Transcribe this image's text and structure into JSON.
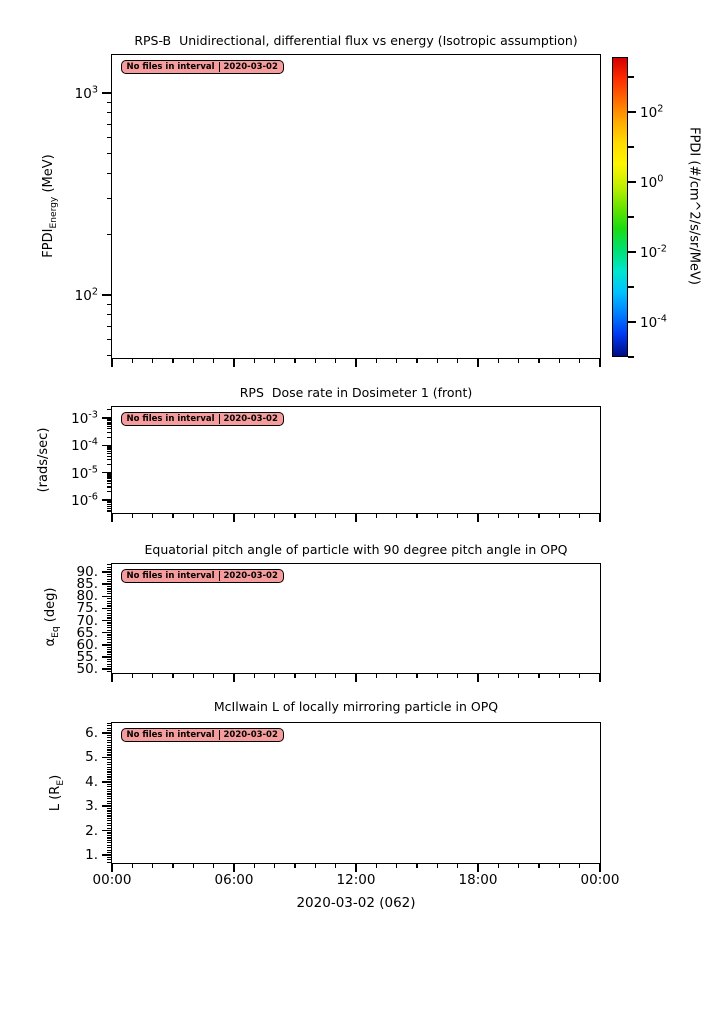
{
  "ui": {
    "badge": {
      "message": "No files in interval",
      "date": "2020-03-02",
      "bg_color": "#f79c9c",
      "border_color": "#000000",
      "text_color": "#000000"
    },
    "xaxis": {
      "tick_labels": [
        "00:00",
        "06:00",
        "12:00",
        "18:00",
        "00:00"
      ],
      "date_label": "2020-03-02 (062)"
    },
    "panels": [
      {
        "ylabel_pre": "FPDI",
        "ylabel_sub": "Energy",
        "ylabel_post": " (MeV)",
        "ytick_labels": [
          {
            "base": "10",
            "exp": "3"
          },
          {
            "base": "10",
            "exp": "2"
          }
        ]
      },
      {
        "ylabel_pre": "(rads/sec)",
        "ylabel_sub": "",
        "ylabel_post": "",
        "ytick_labels": [
          {
            "base": "10",
            "exp": "-3"
          },
          {
            "base": "10",
            "exp": "-4"
          },
          {
            "base": "10",
            "exp": "-5"
          },
          {
            "base": "10",
            "exp": "-6"
          }
        ]
      },
      {
        "ylabel_pre": "α",
        "ylabel_sub": "Eq",
        "ylabel_post": " (deg)",
        "ytick_labels": [
          {
            "text": "90."
          },
          {
            "text": "85."
          },
          {
            "text": "80."
          },
          {
            "text": "75."
          },
          {
            "text": "70."
          },
          {
            "text": "65."
          },
          {
            "text": "60."
          },
          {
            "text": "55."
          },
          {
            "text": "50."
          }
        ]
      },
      {
        "ylabel_pre": "L (R",
        "ylabel_sub": "E",
        "ylabel_post": ")",
        "ytick_labels": [
          {
            "text": "6."
          },
          {
            "text": "5."
          },
          {
            "text": "4."
          },
          {
            "text": "3."
          },
          {
            "text": "2."
          },
          {
            "text": "1."
          }
        ]
      }
    ],
    "colorbar": {
      "label": "FPDI (#/cm^2/s/sr/MeV)",
      "tick_labels": [
        {
          "base": "10",
          "exp": "2"
        },
        {
          "base": "10",
          "exp": "0"
        },
        {
          "base": "10",
          "exp": "-2"
        },
        {
          "base": "10",
          "exp": "-4"
        }
      ],
      "gradient_colors": [
        "#d40000",
        "#ff2e00",
        "#ff6d00",
        "#ffab00",
        "#ffdc00",
        "#fdf500",
        "#c3ef00",
        "#6ce400",
        "#1cdc10",
        "#00e070",
        "#00e6cc",
        "#00c2ff",
        "#0080ff",
        "#0038f0",
        "#000d84"
      ]
    }
  },
  "chart_data": [
    {
      "type": "heatmap",
      "title": "RPS-B  Unidirectional, differential flux vs energy (Isotropic assumption)",
      "xlabel": "2020-03-02 (062)",
      "ylabel": "FPDI_Energy (MeV)",
      "yscale": "log",
      "ylim": [
        48.7,
        1542
      ],
      "ytick_values": [
        1000,
        100
      ],
      "x_range_hours": [
        0,
        24
      ],
      "xtick_labels": [
        "00:00",
        "06:00",
        "12:00",
        "18:00",
        "00:00"
      ],
      "colorbar": {
        "label": "FPDI (#/cm^2/s/sr/MeV)",
        "scale": "log",
        "lim": [
          1e-05,
          3700
        ],
        "tick_values": [
          100,
          1,
          0.01,
          0.0001
        ],
        "minor_tick_values": [
          1000,
          10,
          0.1,
          0.001,
          1e-05
        ],
        "colormap": "jet (red high, blue low)"
      },
      "values": [],
      "annotation": "No files in interval 2020-03-02"
    },
    {
      "type": "line",
      "title": "RPS  Dose rate in Dosimeter 1 (front)",
      "ylabel": "(rads/sec)",
      "yscale": "log",
      "ylim": [
        3.3e-07,
        0.0025
      ],
      "ytick_values": [
        0.001,
        0.0001,
        1e-05,
        1e-06
      ],
      "x": [],
      "y": [],
      "annotation": "No files in interval 2020-03-02"
    },
    {
      "type": "line",
      "title": "Equatorial pitch angle of particle with 90 degree pitch angle in OPQ",
      "ylabel": "α_Eq (deg)",
      "yscale": "linear",
      "ylim": [
        48.3,
        93.3
      ],
      "ytick_values": [
        90,
        85,
        80,
        75,
        70,
        65,
        60,
        55,
        50
      ],
      "x": [],
      "y": [],
      "annotation": "No files in interval 2020-03-02"
    },
    {
      "type": "line",
      "title": "McIlwain L of locally mirroring particle in OPQ",
      "ylabel": "L (R_E)",
      "yscale": "linear",
      "ylim": [
        0.67,
        6.41
      ],
      "ytick_values": [
        6,
        5,
        4,
        3,
        2,
        1
      ],
      "x": [],
      "y": [],
      "annotation": "No files in interval 2020-03-02"
    }
  ]
}
